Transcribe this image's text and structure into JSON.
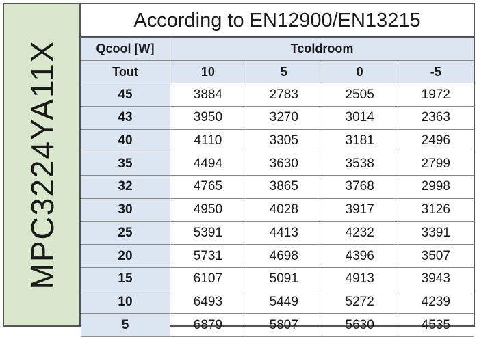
{
  "side_label": "MPC3224YA11X",
  "title": "According to EN12900/EN13215",
  "header": {
    "qcool_label": "Qcool [W]",
    "tcoldroom_label": "Tcoldroom",
    "tout_label": "Tout",
    "tcoldroom_values": [
      "10",
      "5",
      "0",
      "-5"
    ]
  },
  "rows": [
    {
      "tout": "45",
      "values": [
        "3884",
        "2783",
        "2505",
        "1972"
      ]
    },
    {
      "tout": "43",
      "values": [
        "3950",
        "3270",
        "3014",
        "2363"
      ]
    },
    {
      "tout": "40",
      "values": [
        "4110",
        "3305",
        "3181",
        "2496"
      ]
    },
    {
      "tout": "35",
      "values": [
        "4494",
        "3630",
        "3538",
        "2799"
      ]
    },
    {
      "tout": "32",
      "values": [
        "4765",
        "3865",
        "3768",
        "2998"
      ]
    },
    {
      "tout": "30",
      "values": [
        "4950",
        "4028",
        "3917",
        "3126"
      ]
    },
    {
      "tout": "25",
      "values": [
        "5391",
        "4413",
        "4232",
        "3391"
      ]
    },
    {
      "tout": "20",
      "values": [
        "5731",
        "4698",
        "4396",
        "3507"
      ]
    },
    {
      "tout": "15",
      "values": [
        "6107",
        "5091",
        "4913",
        "3943"
      ]
    },
    {
      "tout": "10",
      "values": [
        "6493",
        "5449",
        "5272",
        "4239"
      ]
    },
    {
      "tout": "5",
      "values": [
        "6879",
        "5807",
        "5630",
        "4535"
      ]
    }
  ],
  "colors": {
    "side_background": "#d9e8cc",
    "header_background": "#dce6f2",
    "border": "#555555"
  }
}
